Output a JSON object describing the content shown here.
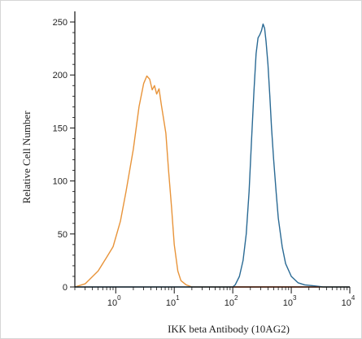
{
  "chart_data": {
    "type": "line",
    "title": "",
    "xlabel": "IKK beta Antibody (10AG2)",
    "ylabel": "Relative Cell Number",
    "xscale": "log",
    "xlim": [
      0.2,
      10000
    ],
    "ylim": [
      0,
      260
    ],
    "x_ticks": [
      {
        "base": "10",
        "exp": "0",
        "value": 1
      },
      {
        "base": "10",
        "exp": "1",
        "value": 10
      },
      {
        "base": "10",
        "exp": "2",
        "value": 100
      },
      {
        "base": "10",
        "exp": "3",
        "value": 1000
      },
      {
        "base": "10",
        "exp": "4",
        "value": 10000
      }
    ],
    "y_ticks": [
      "0",
      "50",
      "100",
      "150",
      "200",
      "250"
    ],
    "grid": false,
    "legend": "none",
    "series": [
      {
        "color": "#e8943a",
        "x": [
          0.2,
          0.3,
          0.5,
          0.7,
          0.9,
          1.2,
          1.5,
          2.0,
          2.5,
          3.0,
          3.4,
          3.8,
          4.2,
          4.6,
          5.0,
          5.5,
          6.0,
          6.5,
          7.2,
          8.0,
          9.0,
          10.0,
          11.5,
          13,
          16,
          20,
          25,
          30,
          10000
        ],
        "y": [
          0,
          3,
          15,
          28,
          38,
          62,
          90,
          130,
          170,
          192,
          199,
          196,
          186,
          190,
          182,
          187,
          172,
          160,
          145,
          110,
          75,
          40,
          15,
          6,
          2,
          0,
          0,
          0,
          0
        ]
      },
      {
        "color": "#2a6a94",
        "x": [
          0.2,
          100,
          110,
          130,
          150,
          170,
          190,
          210,
          230,
          250,
          270,
          290,
          310,
          330,
          350,
          370,
          400,
          430,
          460,
          500,
          550,
          600,
          700,
          800,
          1000,
          1300,
          1700,
          2500,
          3500,
          10000
        ],
        "y": [
          0,
          0,
          2,
          10,
          25,
          50,
          90,
          140,
          185,
          220,
          235,
          238,
          242,
          248,
          244,
          232,
          210,
          180,
          150,
          120,
          90,
          65,
          38,
          22,
          10,
          4,
          2,
          1,
          0,
          0
        ]
      },
      {
        "color": "#c8462c",
        "x": [
          100,
          3000
        ],
        "y": [
          0,
          0
        ]
      }
    ]
  }
}
